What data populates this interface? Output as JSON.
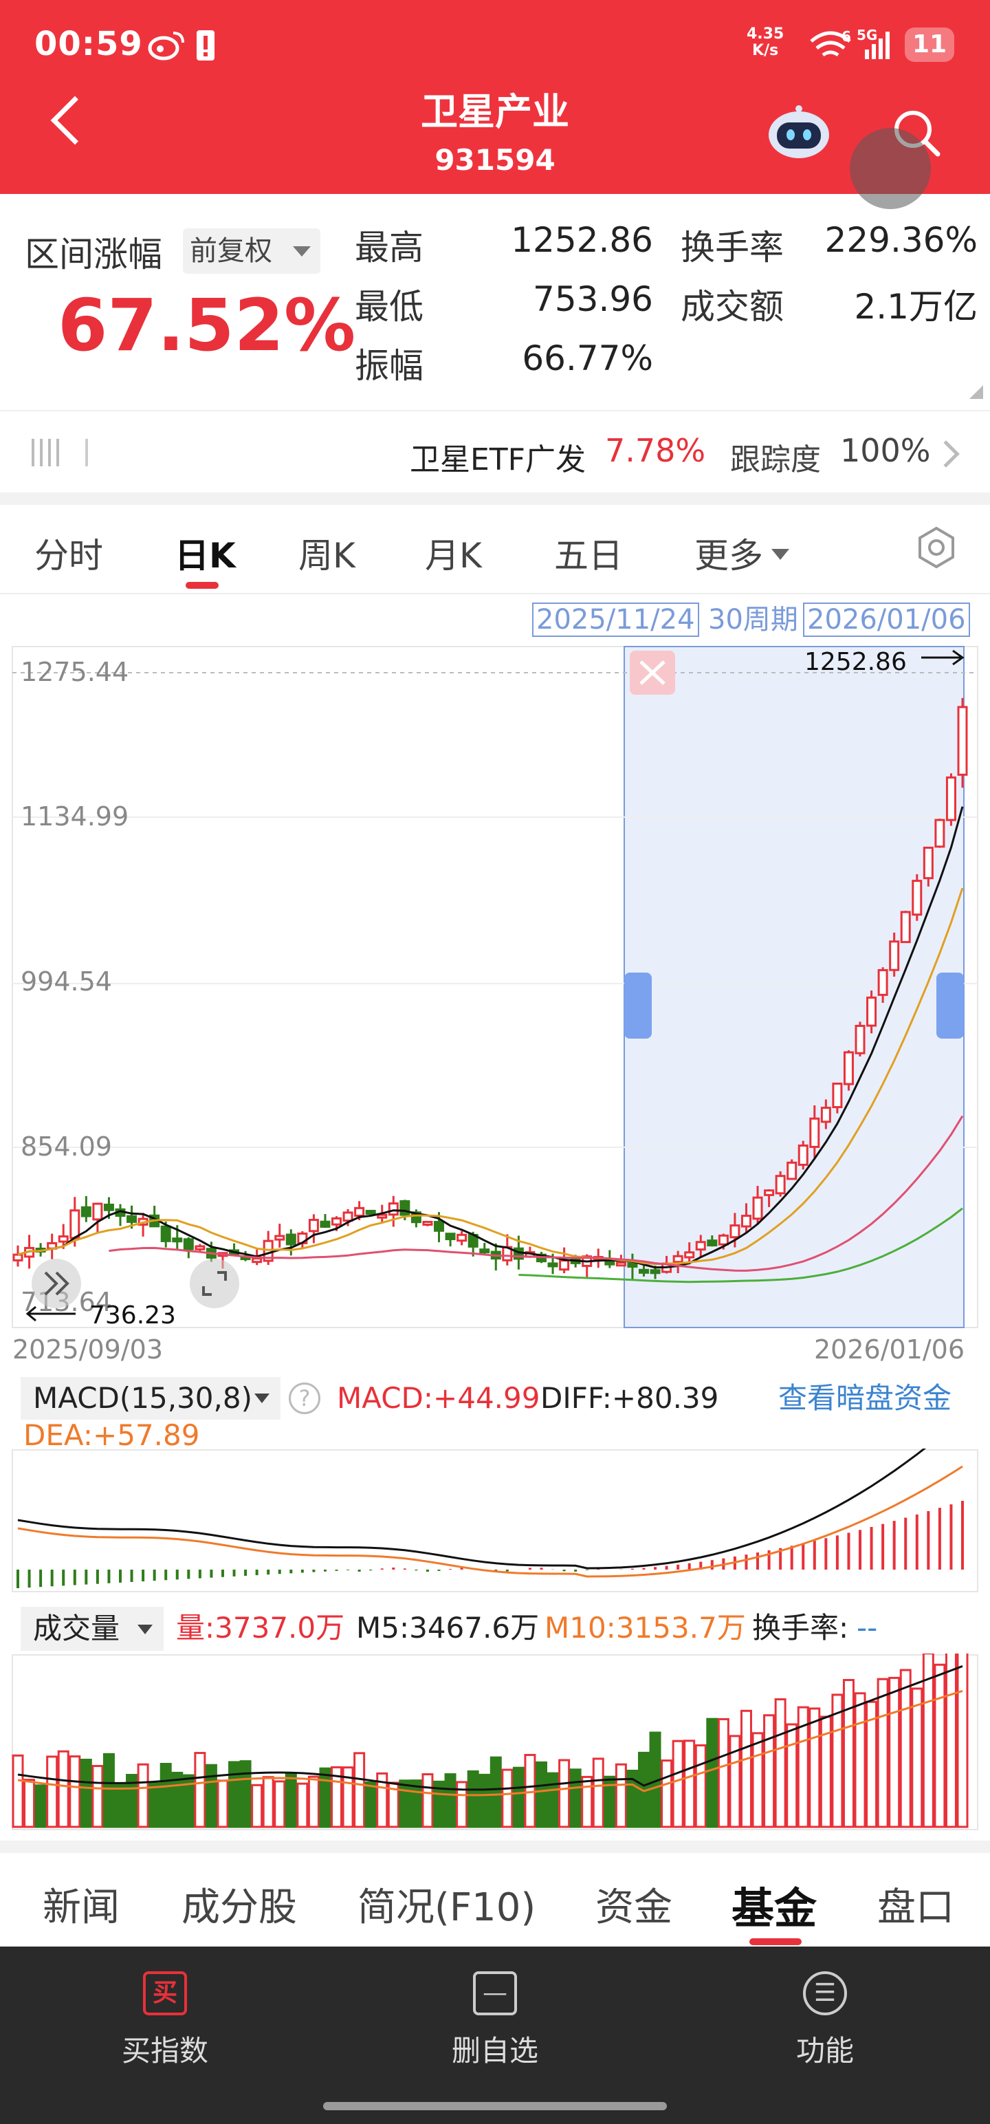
{
  "status_bar": {
    "time": "00:59",
    "speed_value": "4.35",
    "speed_unit": "K/s",
    "network": "5G",
    "battery": "11"
  },
  "header": {
    "title": "卫星产业",
    "code": "931594"
  },
  "stats": {
    "range_label": "区间涨幅",
    "fuquan_label": "前复权",
    "range_pct": "67.52%",
    "high_label": "最高",
    "high_value": "1252.86",
    "low_label": "最低",
    "low_value": "753.96",
    "amp_label": "振幅",
    "amp_value": "66.77%",
    "turnover_label": "换手率",
    "turnover_value": "229.36%",
    "amount_label": "成交额",
    "amount_value": "2.1万亿"
  },
  "etf": {
    "name": "卫星ETF广发",
    "pct": "7.78%",
    "track_label": "跟踪度",
    "track_value": "100%"
  },
  "tabs": [
    "分时",
    "日K",
    "周K",
    "月K",
    "五日",
    "更多"
  ],
  "range": {
    "start": "2025/11/24",
    "periods": "30周期",
    "end": "2026/01/06"
  },
  "kline": {
    "y_labels": [
      "1275.44",
      "1134.99",
      "994.54",
      "854.09",
      "713.64"
    ],
    "high_mark": "1252.86",
    "low_mark": "736.23",
    "date_start": "2025/09/03",
    "date_end": "2026/01/06"
  },
  "macd": {
    "selector": "MACD(15,30,8)",
    "macd_text": "MACD:+44.99",
    "diff_text": "DIFF:+80.39",
    "dea_text": "DEA:+57.89",
    "link": "查看暗盘资金"
  },
  "volume": {
    "selector": "成交量",
    "vol_text": "量:3737.0万",
    "m5_text": "M5:3467.6万",
    "m10_text": "M10:3153.7万",
    "turnover_text": "换手率:",
    "turnover_value": "--"
  },
  "bottom_tabs": [
    "新闻",
    "成分股",
    "简况(F10)",
    "资金",
    "基金",
    "盘口"
  ],
  "bottom_bar": [
    {
      "icon": "买",
      "label": "买指数"
    },
    {
      "icon": "—",
      "label": "删自选"
    },
    {
      "icon": "☰",
      "label": "功能"
    }
  ],
  "colors": {
    "header_red": "#ef333d",
    "up_red": "#e8313a",
    "down_green": "#2e7d1a",
    "link_blue": "#3c84cf",
    "selection_blue": "#7a9bd9"
  }
}
